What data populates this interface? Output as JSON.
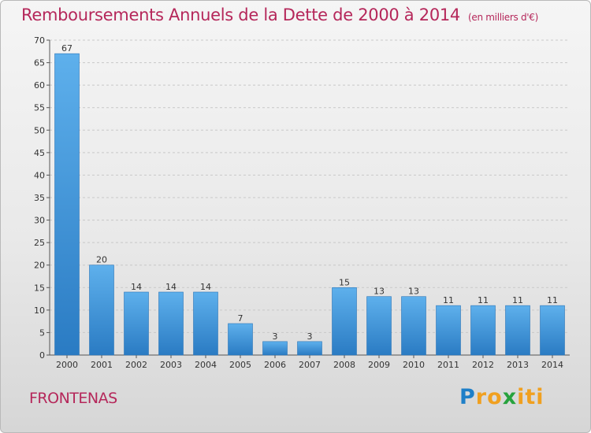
{
  "title": "Remboursements Annuels de la Dette de 2000 à 2014",
  "subtitle": "(en milliers d'€)",
  "commune": "FRONTENAS",
  "logo": "Proxiti",
  "colors": {
    "bar": "#3a8fd6",
    "bar_dark": "#2b7cc4",
    "title": "#b5275a"
  },
  "chart_data": {
    "type": "bar",
    "title": "Remboursements Annuels de la Dette de 2000 à 2014",
    "categories": [
      "2000",
      "2001",
      "2002",
      "2003",
      "2004",
      "2005",
      "2006",
      "2007",
      "2008",
      "2009",
      "2010",
      "2011",
      "2012",
      "2013",
      "2014"
    ],
    "values": [
      67,
      20,
      14,
      14,
      14,
      7,
      3,
      3,
      15,
      13,
      13,
      11,
      11,
      11,
      11
    ],
    "ylim": [
      0,
      70
    ],
    "yticks": [
      0,
      5,
      10,
      15,
      20,
      25,
      30,
      35,
      40,
      45,
      50,
      55,
      60,
      65,
      70
    ],
    "grid": true,
    "xlabel": "",
    "ylabel": ""
  }
}
